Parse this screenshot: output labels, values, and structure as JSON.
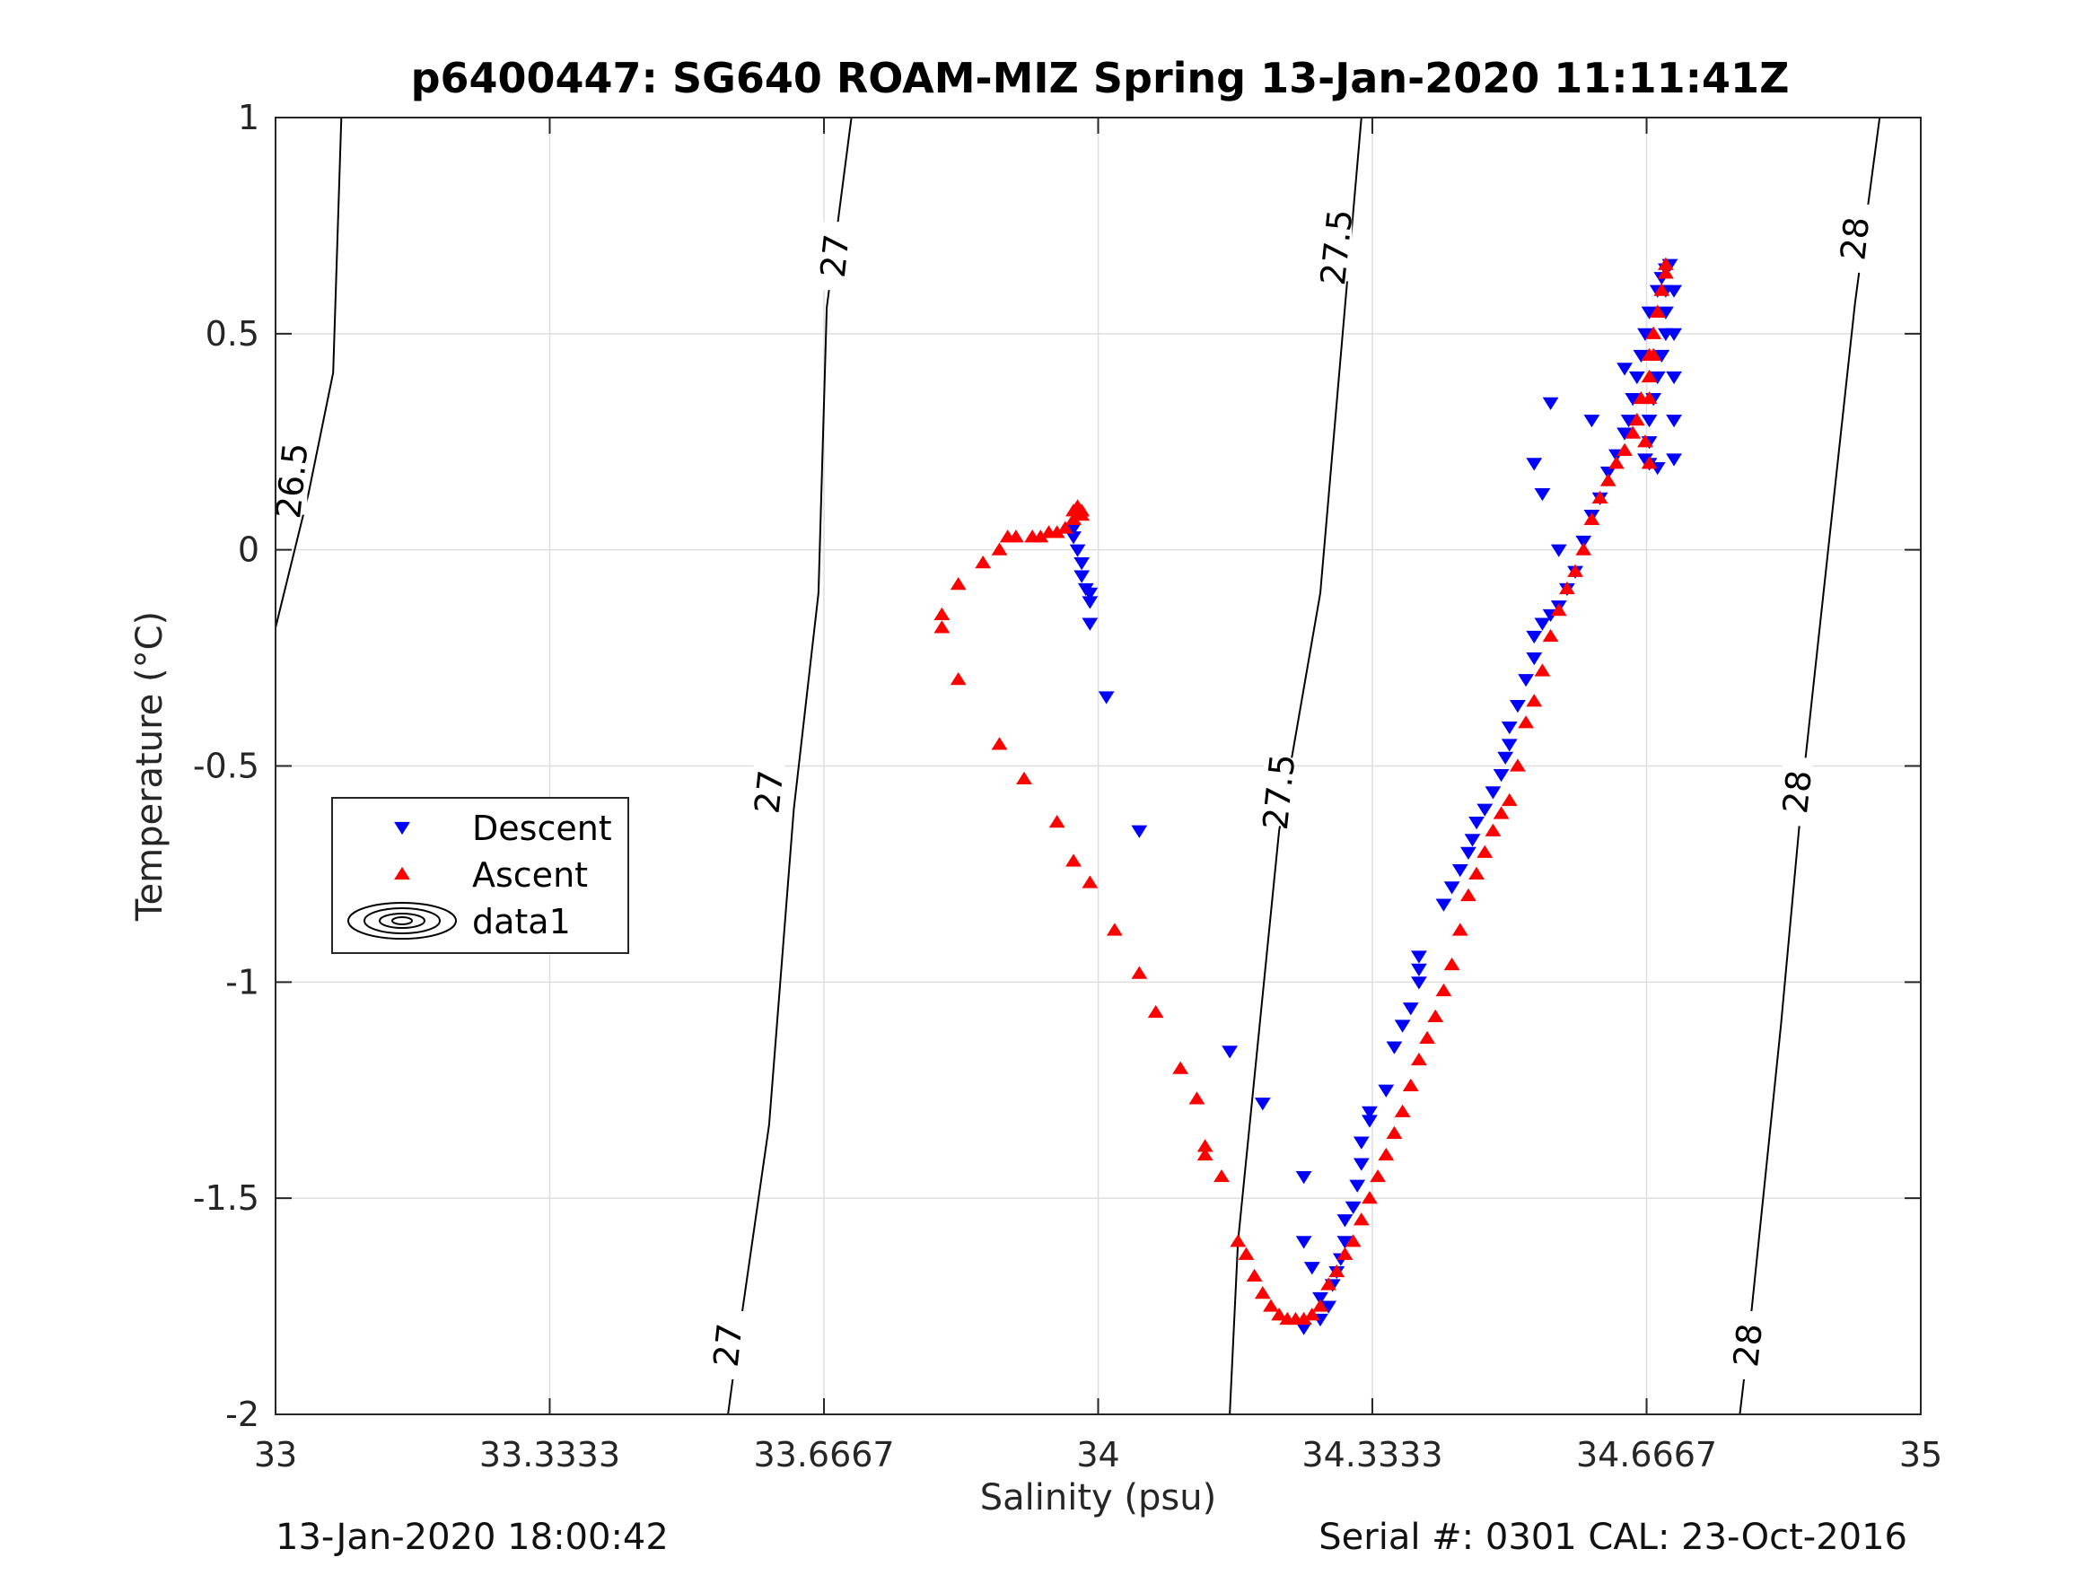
{
  "footer": {
    "left": "13-Jan-2020 18:00:42",
    "right": "Serial #: 0301  CAL: 23-Oct-2016"
  },
  "chart_data": {
    "type": "scatter",
    "title": "p6400447: SG640 ROAM-MIZ Spring 13-Jan-2020 11:11:41Z",
    "xlabel": "Salinity (psu)",
    "ylabel": "Temperature (°C)",
    "xlim": [
      33,
      35
    ],
    "ylim": [
      -2,
      1
    ],
    "xticks": [
      33,
      33.3333,
      33.6667,
      34,
      34.3333,
      34.6667,
      35
    ],
    "xtick_labels": [
      "33",
      "33.3333",
      "33.6667",
      "34",
      "34.3333",
      "34.6667",
      "35"
    ],
    "yticks": [
      -2,
      -1.5,
      -1,
      -0.5,
      0,
      0.5,
      1
    ],
    "ytick_labels": [
      "-2",
      "-1.5",
      "-1",
      "-0.5",
      "0",
      "0.5",
      "1"
    ],
    "grid": true,
    "legend": {
      "position": "center-left",
      "entries": [
        {
          "label": "Descent",
          "marker": "triangle-down",
          "color": "#0000ff"
        },
        {
          "label": "Ascent",
          "marker": "triangle-up",
          "color": "#ff0000"
        },
        {
          "label": "data1",
          "marker": "contour",
          "color": "#000000"
        }
      ]
    },
    "density_contours": [
      {
        "label": "26.5",
        "line": [
          [
            33.0,
            -0.18
          ],
          [
            33.04,
            0.13
          ],
          [
            33.07,
            0.41
          ],
          [
            33.08,
            1.0
          ]
        ],
        "label_points": [
          [
            33.02,
            0.16
          ]
        ]
      },
      {
        "label": "27",
        "line": [
          [
            33.55,
            -2.0
          ],
          [
            33.56,
            -1.86
          ],
          [
            33.6,
            -1.33
          ],
          [
            33.63,
            -0.6
          ],
          [
            33.66,
            -0.1
          ],
          [
            33.67,
            0.56
          ],
          [
            33.7,
            1.0
          ]
        ],
        "label_points": [
          [
            33.55,
            -1.84
          ],
          [
            33.6,
            -0.56
          ],
          [
            33.68,
            0.68
          ]
        ]
      },
      {
        "label": "27.5",
        "line": [
          [
            34.16,
            -2.0
          ],
          [
            34.17,
            -1.6
          ],
          [
            34.22,
            -0.65
          ],
          [
            34.27,
            -0.1
          ],
          [
            34.3,
            0.56
          ],
          [
            34.32,
            1.0
          ]
        ],
        "label_points": [
          [
            34.22,
            -0.56
          ],
          [
            34.29,
            0.7
          ]
        ]
      },
      {
        "label": "28",
        "line": [
          [
            34.78,
            -2.0
          ],
          [
            34.79,
            -1.84
          ],
          [
            34.83,
            -1.1
          ],
          [
            34.86,
            -0.48
          ],
          [
            34.92,
            0.57
          ],
          [
            34.95,
            1.0
          ]
        ],
        "label_points": [
          [
            34.79,
            -1.84
          ],
          [
            34.85,
            -0.56
          ],
          [
            34.92,
            0.72
          ]
        ]
      }
    ],
    "series": [
      {
        "name": "Descent",
        "color": "#0000ff",
        "marker": "triangle-down",
        "points": [
          [
            33.97,
            0.05
          ],
          [
            33.97,
            0.03
          ],
          [
            33.975,
            0.0
          ],
          [
            33.98,
            -0.03
          ],
          [
            33.98,
            -0.06
          ],
          [
            33.985,
            -0.09
          ],
          [
            33.99,
            -0.1
          ],
          [
            33.99,
            -0.12
          ],
          [
            33.99,
            -0.17
          ],
          [
            34.01,
            -0.34
          ],
          [
            34.05,
            -0.65
          ],
          [
            34.16,
            -1.16
          ],
          [
            34.2,
            -1.28
          ],
          [
            34.25,
            -1.45
          ],
          [
            34.25,
            -1.6
          ],
          [
            34.26,
            -1.66
          ],
          [
            34.27,
            -1.73
          ],
          [
            34.25,
            -1.8
          ],
          [
            34.27,
            -1.78
          ],
          [
            34.28,
            -1.75
          ],
          [
            34.285,
            -1.7
          ],
          [
            34.29,
            -1.67
          ],
          [
            34.295,
            -1.64
          ],
          [
            34.3,
            -1.6
          ],
          [
            34.3,
            -1.55
          ],
          [
            34.31,
            -1.52
          ],
          [
            34.315,
            -1.47
          ],
          [
            34.32,
            -1.42
          ],
          [
            34.32,
            -1.37
          ],
          [
            34.33,
            -1.32
          ],
          [
            34.33,
            -1.3
          ],
          [
            34.35,
            -1.25
          ],
          [
            34.36,
            -1.15
          ],
          [
            34.37,
            -1.1
          ],
          [
            34.38,
            -1.06
          ],
          [
            34.39,
            -1.0
          ],
          [
            34.39,
            -0.97
          ],
          [
            34.39,
            -0.94
          ],
          [
            34.42,
            -0.82
          ],
          [
            34.43,
            -0.78
          ],
          [
            34.44,
            -0.74
          ],
          [
            34.45,
            -0.7
          ],
          [
            34.455,
            -0.67
          ],
          [
            34.46,
            -0.63
          ],
          [
            34.47,
            -0.6
          ],
          [
            34.48,
            -0.56
          ],
          [
            34.49,
            -0.52
          ],
          [
            34.495,
            -0.48
          ],
          [
            34.5,
            -0.45
          ],
          [
            34.5,
            -0.41
          ],
          [
            34.51,
            -0.36
          ],
          [
            34.52,
            -0.3
          ],
          [
            34.53,
            -0.25
          ],
          [
            34.53,
            -0.2
          ],
          [
            34.54,
            -0.17
          ],
          [
            34.55,
            -0.15
          ],
          [
            34.56,
            -0.13
          ],
          [
            34.57,
            -0.09
          ],
          [
            34.58,
            -0.05
          ],
          [
            34.59,
            0.02
          ],
          [
            34.6,
            0.08
          ],
          [
            34.61,
            0.12
          ],
          [
            34.62,
            0.18
          ],
          [
            34.63,
            0.22
          ],
          [
            34.64,
            0.27
          ],
          [
            34.645,
            0.3
          ],
          [
            34.65,
            0.35
          ],
          [
            34.655,
            0.4
          ],
          [
            34.66,
            0.45
          ],
          [
            34.665,
            0.5
          ],
          [
            34.67,
            0.55
          ],
          [
            34.68,
            0.6
          ],
          [
            34.685,
            0.63
          ],
          [
            34.69,
            0.65
          ],
          [
            34.695,
            0.66
          ],
          [
            34.69,
            0.6
          ],
          [
            34.69,
            0.55
          ],
          [
            34.69,
            0.5
          ],
          [
            34.685,
            0.45
          ],
          [
            34.68,
            0.4
          ],
          [
            34.675,
            0.35
          ],
          [
            34.67,
            0.3
          ],
          [
            34.67,
            0.25
          ],
          [
            34.665,
            0.21
          ],
          [
            34.67,
            0.2
          ],
          [
            34.68,
            0.19
          ],
          [
            34.7,
            0.21
          ],
          [
            34.7,
            0.3
          ],
          [
            34.7,
            0.4
          ],
          [
            34.7,
            0.5
          ],
          [
            34.7,
            0.6
          ],
          [
            34.55,
            0.34
          ],
          [
            34.6,
            0.3
          ],
          [
            34.64,
            0.42
          ],
          [
            34.53,
            0.2
          ],
          [
            34.54,
            0.13
          ],
          [
            34.56,
            0.0
          ]
        ]
      },
      {
        "name": "Ascent",
        "color": "#ff0000",
        "marker": "triangle-up",
        "points": [
          [
            33.81,
            -0.18
          ],
          [
            33.81,
            -0.15
          ],
          [
            33.83,
            -0.08
          ],
          [
            33.83,
            -0.3
          ],
          [
            33.86,
            -0.03
          ],
          [
            33.88,
            0.0
          ],
          [
            33.89,
            0.03
          ],
          [
            33.9,
            0.03
          ],
          [
            33.92,
            0.03
          ],
          [
            33.93,
            0.03
          ],
          [
            33.94,
            0.04
          ],
          [
            33.95,
            0.04
          ],
          [
            33.96,
            0.05
          ],
          [
            33.97,
            0.07
          ],
          [
            33.97,
            0.09
          ],
          [
            33.98,
            0.09
          ],
          [
            33.98,
            0.08
          ],
          [
            33.975,
            0.1
          ],
          [
            33.88,
            -0.45
          ],
          [
            33.91,
            -0.53
          ],
          [
            33.95,
            -0.63
          ],
          [
            33.97,
            -0.72
          ],
          [
            33.99,
            -0.77
          ],
          [
            34.02,
            -0.88
          ],
          [
            34.05,
            -0.98
          ],
          [
            34.07,
            -1.07
          ],
          [
            34.1,
            -1.2
          ],
          [
            34.12,
            -1.27
          ],
          [
            34.13,
            -1.38
          ],
          [
            34.13,
            -1.4
          ],
          [
            34.15,
            -1.45
          ],
          [
            34.17,
            -1.6
          ],
          [
            34.18,
            -1.63
          ],
          [
            34.19,
            -1.68
          ],
          [
            34.2,
            -1.72
          ],
          [
            34.21,
            -1.75
          ],
          [
            34.22,
            -1.77
          ],
          [
            34.23,
            -1.78
          ],
          [
            34.24,
            -1.78
          ],
          [
            34.25,
            -1.78
          ],
          [
            34.26,
            -1.77
          ],
          [
            34.27,
            -1.75
          ],
          [
            34.28,
            -1.7
          ],
          [
            34.29,
            -1.67
          ],
          [
            34.3,
            -1.63
          ],
          [
            34.31,
            -1.6
          ],
          [
            34.32,
            -1.55
          ],
          [
            34.33,
            -1.5
          ],
          [
            34.34,
            -1.45
          ],
          [
            34.35,
            -1.4
          ],
          [
            34.36,
            -1.35
          ],
          [
            34.37,
            -1.3
          ],
          [
            34.38,
            -1.24
          ],
          [
            34.39,
            -1.18
          ],
          [
            34.4,
            -1.13
          ],
          [
            34.41,
            -1.08
          ],
          [
            34.42,
            -1.02
          ],
          [
            34.43,
            -0.96
          ],
          [
            34.44,
            -0.88
          ],
          [
            34.45,
            -0.8
          ],
          [
            34.46,
            -0.75
          ],
          [
            34.47,
            -0.7
          ],
          [
            34.48,
            -0.65
          ],
          [
            34.49,
            -0.61
          ],
          [
            34.5,
            -0.58
          ],
          [
            34.51,
            -0.5
          ],
          [
            34.52,
            -0.4
          ],
          [
            34.53,
            -0.35
          ],
          [
            34.54,
            -0.28
          ],
          [
            34.55,
            -0.2
          ],
          [
            34.56,
            -0.14
          ],
          [
            34.57,
            -0.09
          ],
          [
            34.58,
            -0.05
          ],
          [
            34.59,
            0.0
          ],
          [
            34.6,
            0.07
          ],
          [
            34.61,
            0.12
          ],
          [
            34.62,
            0.16
          ],
          [
            34.63,
            0.2
          ],
          [
            34.64,
            0.23
          ],
          [
            34.65,
            0.27
          ],
          [
            34.655,
            0.3
          ],
          [
            34.66,
            0.35
          ],
          [
            34.67,
            0.4
          ],
          [
            34.67,
            0.45
          ],
          [
            34.675,
            0.5
          ],
          [
            34.68,
            0.55
          ],
          [
            34.685,
            0.6
          ],
          [
            34.69,
            0.64
          ],
          [
            34.69,
            0.66
          ],
          [
            34.68,
            0.55
          ],
          [
            34.675,
            0.45
          ],
          [
            34.67,
            0.35
          ],
          [
            34.665,
            0.25
          ],
          [
            34.67,
            0.2
          ]
        ]
      }
    ]
  }
}
